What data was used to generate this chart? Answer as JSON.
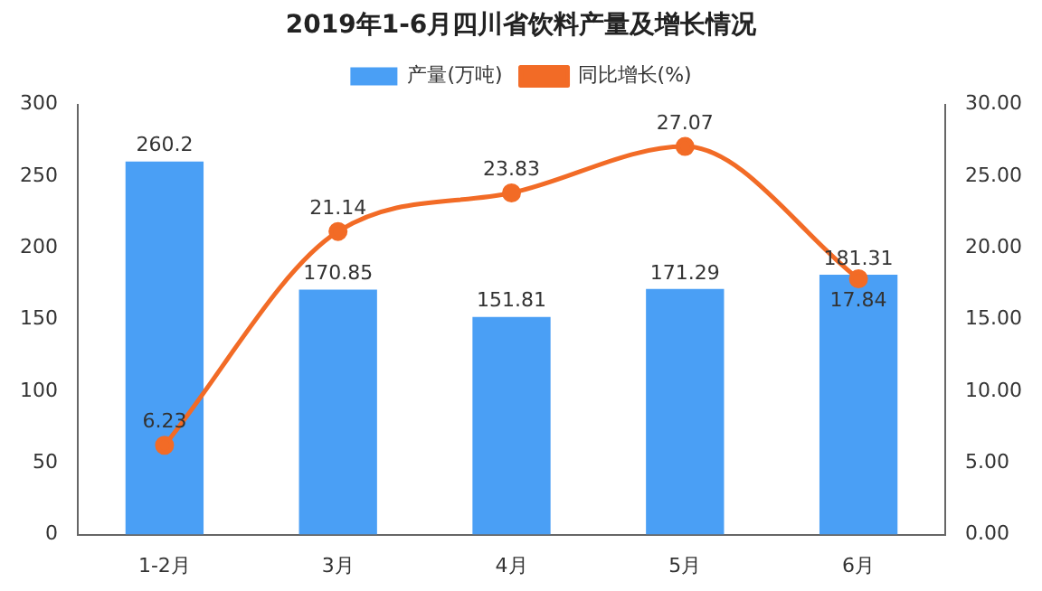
{
  "chart_data": {
    "type": "bar",
    "title": "2019年1-6月四川省饮料产量及增长情况",
    "categories": [
      "1-2月",
      "3月",
      "4月",
      "5月",
      "6月"
    ],
    "series": [
      {
        "name": "产量(万吨)",
        "color": "#4a9ff5",
        "values": [
          260.2,
          170.85,
          151.81,
          171.29,
          181.31
        ]
      },
      {
        "name": "同比增长(%)",
        "type": "line",
        "axis": "y2",
        "color": "#f26b26",
        "values": [
          6.23,
          21.14,
          23.83,
          27.07,
          17.84
        ]
      }
    ],
    "ylim": [
      0,
      300
    ],
    "yticks": [
      0,
      50,
      100,
      150,
      200,
      250,
      300
    ],
    "y2lim": [
      0,
      30
    ],
    "y2ticks": [
      {
        "value": 0,
        "label": "0.00"
      },
      {
        "value": 5,
        "label": "5.00"
      },
      {
        "value": 10,
        "label": "10.00"
      },
      {
        "value": 15,
        "label": "15.00"
      },
      {
        "value": 20,
        "label": "20.00"
      },
      {
        "value": 25,
        "label": "25.00"
      },
      {
        "value": 30,
        "label": "30.00"
      }
    ],
    "data_labels": true,
    "legend": "top",
    "marker": "circle",
    "line_style": "solid",
    "grid": false
  }
}
